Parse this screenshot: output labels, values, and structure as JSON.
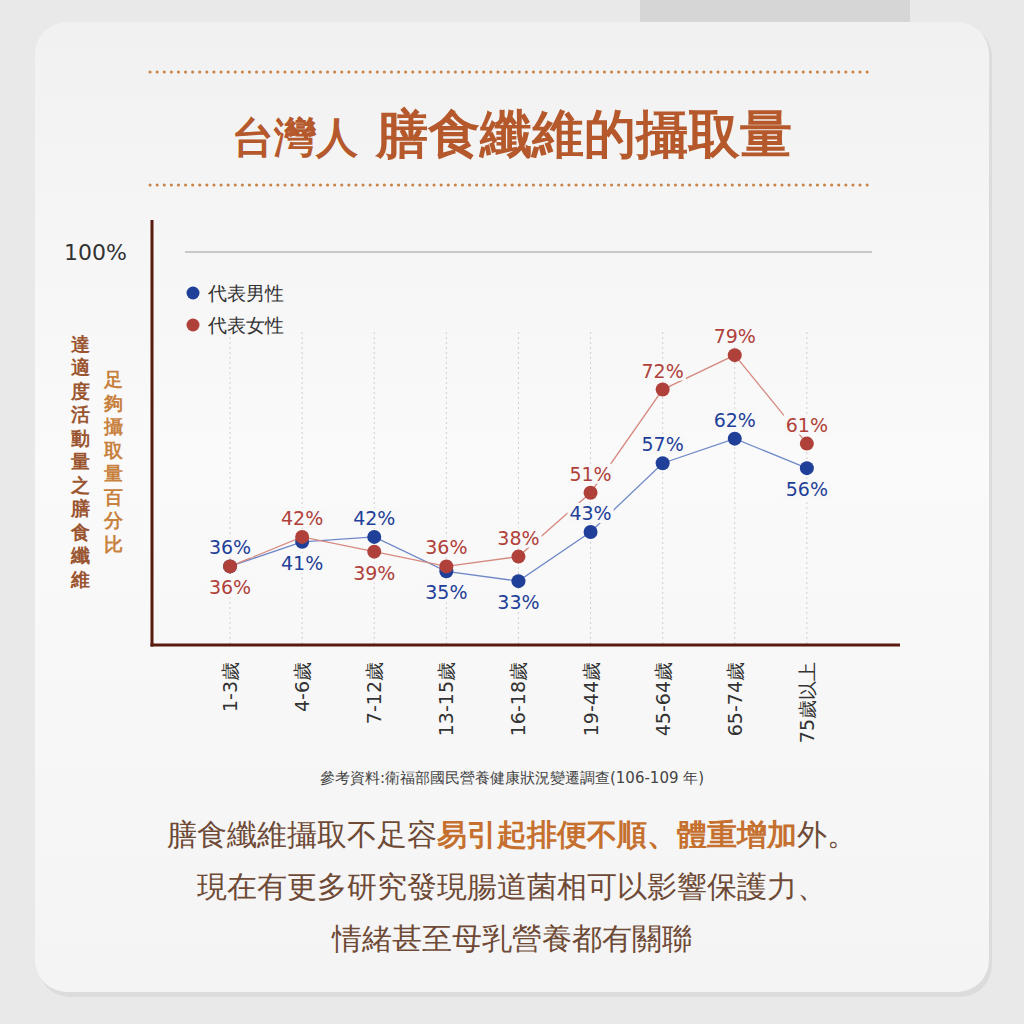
{
  "chart_data": {
    "type": "line",
    "title": "台灣人 膳食纖維的攝取量",
    "ylabel": [
      "達適度活動量之膳食纖維",
      "足夠攝取量百分比"
    ],
    "categories": [
      "1-3歲",
      "4-6歲",
      "7-12歲",
      "13-15歲",
      "16-18歲",
      "19-44歲",
      "45-64歲",
      "65-74歲",
      "75歲以上"
    ],
    "series": [
      {
        "name": "代表男性",
        "color": "#1f3f99",
        "marker": "circle",
        "values": [
          36,
          41,
          42,
          35,
          33,
          43,
          57,
          62,
          56
        ],
        "value_labels": [
          "36%",
          "41%",
          "42%",
          "35%",
          "33%",
          "43%",
          "57%",
          "62%",
          "56%"
        ]
      },
      {
        "name": "代表女性",
        "color": "#b0413a",
        "marker": "circle",
        "values": [
          36,
          42,
          39,
          36,
          38,
          51,
          72,
          79,
          61
        ],
        "value_labels": [
          "36%",
          "42%",
          "39%",
          "36%",
          "38%",
          "51%",
          "72%",
          "79%",
          "61%"
        ]
      }
    ],
    "ylim": [
      20,
      100
    ],
    "yticks": [
      {
        "value": 100,
        "label": "100%"
      }
    ],
    "grid": true,
    "legend": "top-left",
    "data_labels": true,
    "source": "參考資料:衛福部國民營養健康狀況變遷調查(106-109 年)",
    "annotations": [
      [
        "膳食纖維攝取不足容",
        "易引起排便不順、體重增加",
        "外。"
      ],
      [
        "現在有更多研究發現腸道菌相可以影響保護力、"
      ],
      [
        "情緒甚至母乳營養都有關聯"
      ]
    ]
  }
}
